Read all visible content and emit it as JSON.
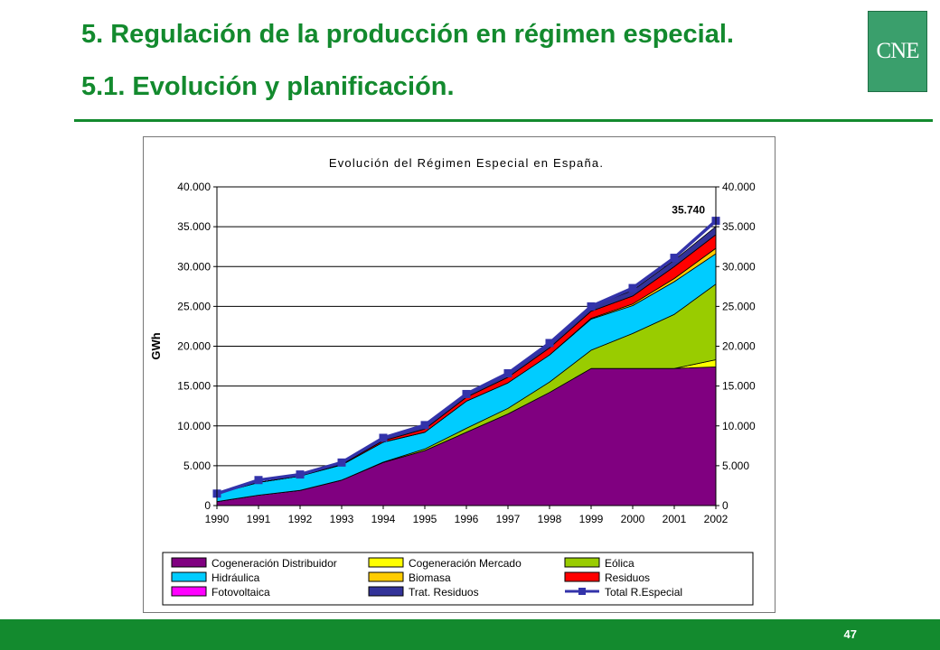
{
  "slide": {
    "title_line1": "5. Regulación de la producción en régimen especial.",
    "title_line2": "5.1. Evolución y planificación.",
    "logo_text": "CNE",
    "page_number": "47",
    "accent_color": "#138a2e",
    "logo_color": "#3a9f6c"
  },
  "chart_data": {
    "type": "area",
    "title": "Evolución del Régimen Especial en España.",
    "ylabel": "GWh",
    "xlabel": "",
    "ylim": [
      0,
      40000
    ],
    "y_ticks": [
      0,
      5000,
      10000,
      15000,
      20000,
      25000,
      30000,
      35000,
      40000
    ],
    "y_tick_labels": [
      "0",
      "5.000",
      "10.000",
      "15.000",
      "20.000",
      "25.000",
      "30.000",
      "35.000",
      "40.000"
    ],
    "secondary_y_axis": true,
    "grid": "horizontal",
    "stacked": true,
    "legend_placement": "bottom",
    "categories": [
      "1990",
      "1991",
      "1992",
      "1993",
      "1994",
      "1995",
      "1996",
      "1997",
      "1998",
      "1999",
      "2000",
      "2001",
      "2002"
    ],
    "series": [
      {
        "name": "Cogeneración Distribuidor",
        "color": "#800080",
        "values": [
          500,
          1300,
          1900,
          3200,
          5400,
          6900,
          9200,
          11500,
          14200,
          17200,
          17200,
          17200,
          17400
        ]
      },
      {
        "name": "Cogeneración Mercado",
        "color": "#ffff00",
        "values": [
          0,
          0,
          0,
          0,
          0,
          0,
          0,
          0,
          0,
          0,
          0,
          0,
          900
        ]
      },
      {
        "name": "Eólica",
        "color": "#99cc00",
        "values": [
          0,
          0,
          0,
          0,
          50,
          200,
          500,
          700,
          1300,
          2300,
          4400,
          6800,
          9500
        ]
      },
      {
        "name": "Hidráulica",
        "color": "#00ccff",
        "values": [
          1000,
          1600,
          1800,
          1900,
          2500,
          2100,
          3400,
          3200,
          3400,
          3900,
          3500,
          4100,
          3800
        ]
      },
      {
        "name": "Biomasa",
        "color": "#ffcc00",
        "values": [
          0,
          0,
          0,
          0,
          0,
          0,
          0,
          0,
          0,
          100,
          200,
          400,
          700
        ]
      },
      {
        "name": "Residuos",
        "color": "#ff0000",
        "values": [
          0,
          0,
          0,
          100,
          200,
          400,
          500,
          700,
          900,
          900,
          1000,
          1500,
          1700
        ]
      },
      {
        "name": "Fotovoltaica",
        "color": "#ff00ff",
        "values": [
          0,
          0,
          0,
          0,
          0,
          0,
          0,
          0,
          0,
          0,
          0,
          0,
          10
        ]
      },
      {
        "name": "Trat. Residuos",
        "color": "#333399",
        "values": [
          0,
          0,
          0,
          100,
          200,
          400,
          400,
          500,
          500,
          600,
          700,
          800,
          1000
        ]
      }
    ],
    "total_series": {
      "name": "Total R.Especial",
      "color": "#3333aa",
      "values": [
        1500,
        3200,
        3900,
        5400,
        8500,
        10100,
        14000,
        16600,
        20400,
        25000,
        27300,
        31100,
        35740
      ]
    },
    "annotations": [
      {
        "category": "2002",
        "label": "35.740"
      }
    ]
  }
}
